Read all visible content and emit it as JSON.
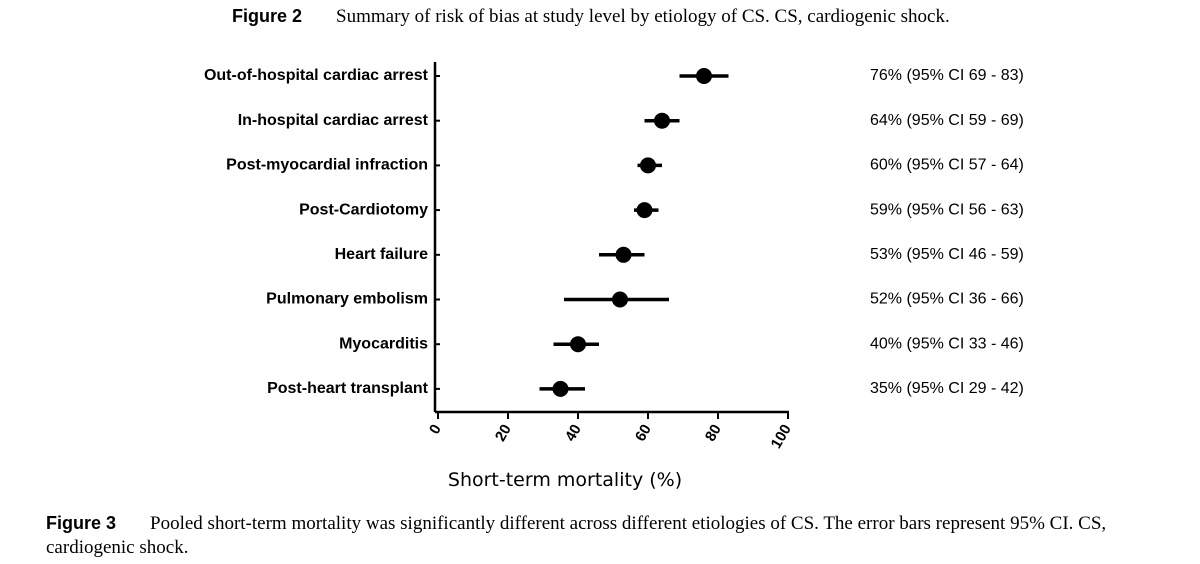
{
  "figure2": {
    "label": "Figure 2",
    "caption": "Summary of risk of bias at study level by etiology of CS. CS, cardiogenic shock."
  },
  "figure3": {
    "label": "Figure 3",
    "caption": "Pooled short-term mortality was significantly different across different etiologies of CS. The error bars represent 95% CI. CS, cardiogenic shock."
  },
  "chart_data": {
    "type": "scatter",
    "xlabel": "Short-term mortality (%)",
    "xlim": [
      0,
      100
    ],
    "xticks": [
      "0",
      "20",
      "40",
      "60",
      "80",
      "100"
    ],
    "categories": [
      "Out-of-hospital cardiac arrest",
      "In-hospital cardiac arrest",
      "Post-myocardial infraction",
      "Post-Cardiotomy",
      "Heart failure",
      "Pulmonary embolism",
      "Myocarditis",
      "Post-heart transplant"
    ],
    "values": [
      76,
      64,
      60,
      59,
      53,
      52,
      40,
      35
    ],
    "ci_low": [
      69,
      59,
      57,
      56,
      46,
      36,
      33,
      29
    ],
    "ci_high": [
      83,
      69,
      64,
      63,
      59,
      66,
      46,
      42
    ],
    "annotations": [
      "76% (95% CI 69 - 83)",
      "64% (95% CI 59 - 69)",
      "60% (95% CI 57 - 64)",
      "59% (95% CI 56 - 63)",
      "53% (95% CI 46 - 59)",
      "52% (95% CI 36 - 66)",
      "40% (95% CI 33 - 46)",
      "35% (95% CI 29 - 42)"
    ],
    "grid": false
  }
}
